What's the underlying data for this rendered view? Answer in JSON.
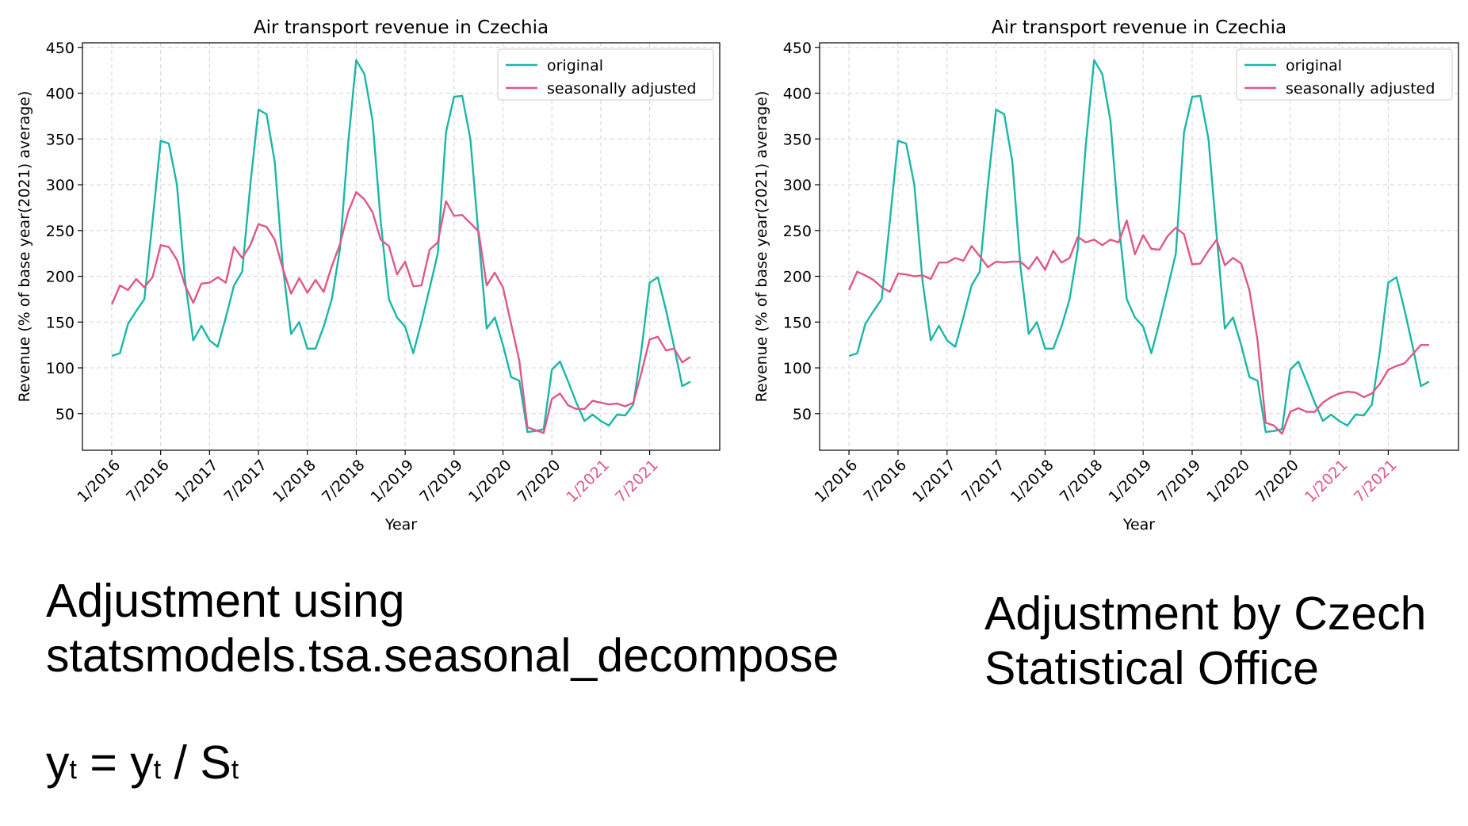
{
  "colors": {
    "original": "#1ab7a6",
    "adjusted": "#e0578a",
    "highlight_tick": "#e0578a",
    "grid": "#d3d3d3"
  },
  "chart_data": [
    {
      "type": "line",
      "title": "Air transport revenue in Czechia",
      "xlabel": "Year",
      "ylabel": "Revenue (% of base year(2021) average)",
      "ylim": [
        10,
        455
      ],
      "yticks": [
        50,
        100,
        150,
        200,
        250,
        300,
        350,
        400,
        450
      ],
      "xticks": [
        {
          "index": 0,
          "label": "1/2016"
        },
        {
          "index": 6,
          "label": "7/2016"
        },
        {
          "index": 12,
          "label": "1/2017"
        },
        {
          "index": 18,
          "label": "7/2017"
        },
        {
          "index": 24,
          "label": "1/2018"
        },
        {
          "index": 30,
          "label": "7/2018"
        },
        {
          "index": 36,
          "label": "1/2019"
        },
        {
          "index": 42,
          "label": "7/2019"
        },
        {
          "index": 48,
          "label": "1/2020"
        },
        {
          "index": 54,
          "label": "7/2020"
        },
        {
          "index": 60,
          "label": "1/2021",
          "highlight": true
        },
        {
          "index": 66,
          "label": "7/2021",
          "highlight": true
        }
      ],
      "grid": true,
      "legend": "top-right",
      "series": [
        {
          "name": "original",
          "color": "#1ab7a6",
          "values": [
            113,
            116,
            148,
            162,
            175,
            260,
            348,
            345,
            300,
            195,
            130,
            146,
            130,
            123,
            155,
            190,
            205,
            300,
            382,
            377,
            325,
            210,
            137,
            150,
            121,
            121,
            145,
            175,
            230,
            345,
            436,
            421,
            370,
            260,
            175,
            155,
            145,
            116,
            150,
            187,
            225,
            357,
            396,
            397,
            350,
            245,
            143,
            155,
            125,
            90,
            86,
            30,
            31,
            33,
            98,
            107,
            85,
            62,
            42,
            49,
            42,
            37,
            49,
            48,
            60,
            120,
            193,
            199,
            163,
            123,
            80,
            85
          ]
        },
        {
          "name": "seasonally adjusted",
          "color": "#e0578a",
          "values": [
            169,
            190,
            185,
            197,
            188,
            199,
            234,
            232,
            218,
            190,
            171,
            192,
            193,
            199,
            193,
            232,
            220,
            234,
            257,
            254,
            240,
            208,
            181,
            198,
            182,
            196,
            183,
            211,
            235,
            270,
            292,
            284,
            270,
            240,
            233,
            202,
            216,
            189,
            190,
            229,
            237,
            282,
            266,
            267,
            258,
            249,
            190,
            204,
            188,
            148,
            108,
            35,
            32,
            29,
            66,
            72,
            59,
            55,
            55,
            64,
            62,
            60,
            61,
            58,
            62,
            95,
            131,
            134,
            119,
            121,
            106,
            112
          ]
        }
      ]
    },
    {
      "type": "line",
      "title": "Air transport revenue in Czechia",
      "xlabel": "Year",
      "ylabel": "Revenue (% of base year(2021) average)",
      "ylim": [
        10,
        455
      ],
      "yticks": [
        50,
        100,
        150,
        200,
        250,
        300,
        350,
        400,
        450
      ],
      "xticks": [
        {
          "index": 0,
          "label": "1/2016"
        },
        {
          "index": 6,
          "label": "7/2016"
        },
        {
          "index": 12,
          "label": "1/2017"
        },
        {
          "index": 18,
          "label": "7/2017"
        },
        {
          "index": 24,
          "label": "1/2018"
        },
        {
          "index": 30,
          "label": "7/2018"
        },
        {
          "index": 36,
          "label": "1/2019"
        },
        {
          "index": 42,
          "label": "7/2019"
        },
        {
          "index": 48,
          "label": "1/2020"
        },
        {
          "index": 54,
          "label": "7/2020"
        },
        {
          "index": 60,
          "label": "1/2021",
          "highlight": true
        },
        {
          "index": 66,
          "label": "7/2021",
          "highlight": true
        }
      ],
      "grid": true,
      "legend": "top-right",
      "series": [
        {
          "name": "original",
          "color": "#1ab7a6",
          "values": [
            113,
            116,
            148,
            162,
            175,
            260,
            348,
            345,
            300,
            195,
            130,
            146,
            130,
            123,
            155,
            190,
            205,
            300,
            382,
            377,
            325,
            210,
            137,
            150,
            121,
            121,
            145,
            175,
            230,
            345,
            436,
            421,
            370,
            260,
            175,
            155,
            145,
            116,
            150,
            187,
            225,
            357,
            396,
            397,
            350,
            245,
            143,
            155,
            125,
            90,
            86,
            30,
            31,
            33,
            98,
            107,
            85,
            62,
            42,
            49,
            42,
            37,
            49,
            48,
            60,
            120,
            193,
            199,
            163,
            123,
            80,
            85
          ]
        },
        {
          "name": "seasonally adjusted",
          "color": "#e0578a",
          "values": [
            185,
            205,
            201,
            196,
            188,
            183,
            203,
            202,
            200,
            201,
            197,
            215,
            215,
            220,
            217,
            233,
            222,
            210,
            216,
            215,
            216,
            216,
            208,
            221,
            207,
            228,
            215,
            220,
            243,
            237,
            240,
            234,
            240,
            237,
            261,
            224,
            245,
            230,
            229,
            244,
            253,
            246,
            213,
            214,
            228,
            240,
            212,
            220,
            214,
            185,
            130,
            40,
            37,
            28,
            52,
            56,
            52,
            52,
            62,
            68,
            72,
            74,
            73,
            68,
            72,
            83,
            98,
            102,
            105,
            115,
            125,
            125
          ]
        }
      ]
    }
  ],
  "captions": {
    "left_line1": "Adjustment using",
    "left_line2": "statsmodels.tsa.seasonal_decompose",
    "right_line1": "Adjustment by Czech",
    "right_line2": "Statistical Office"
  },
  "formula": {
    "y1": "y",
    "t1": "t",
    "eq": " = y",
    "t2": "t",
    "div": " / S",
    "t3": "t"
  }
}
